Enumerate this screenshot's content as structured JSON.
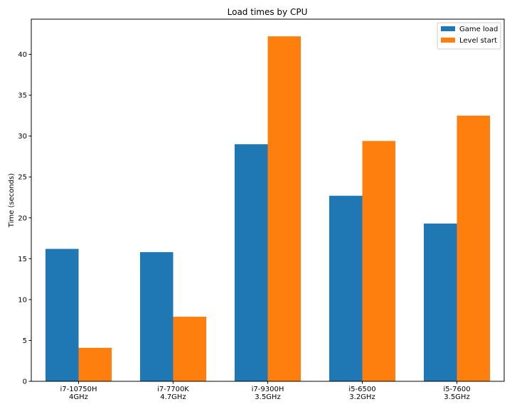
{
  "chart_data": {
    "type": "bar",
    "title": "Load times by CPU",
    "xlabel": "",
    "ylabel": "Time (seconds)",
    "categories": [
      [
        "i7-10750H",
        "4GHz"
      ],
      [
        "i7-7700K",
        "4.7GHz"
      ],
      [
        "i7-9300H",
        "3.5GHz"
      ],
      [
        "i5-6500",
        "3.2GHz"
      ],
      [
        "i5-7600",
        "3.5GHz"
      ]
    ],
    "series": [
      {
        "name": "Game load",
        "color": "#1f77b4",
        "values": [
          16.2,
          15.8,
          29.0,
          22.7,
          19.3
        ]
      },
      {
        "name": "Level start",
        "color": "#ff7f0e",
        "values": [
          4.1,
          7.9,
          42.2,
          29.4,
          32.5
        ]
      }
    ],
    "ylim": [
      0,
      44.3
    ],
    "yticks": [
      0,
      5,
      10,
      15,
      20,
      25,
      30,
      35,
      40
    ],
    "grid": false,
    "legend": "top-right"
  }
}
